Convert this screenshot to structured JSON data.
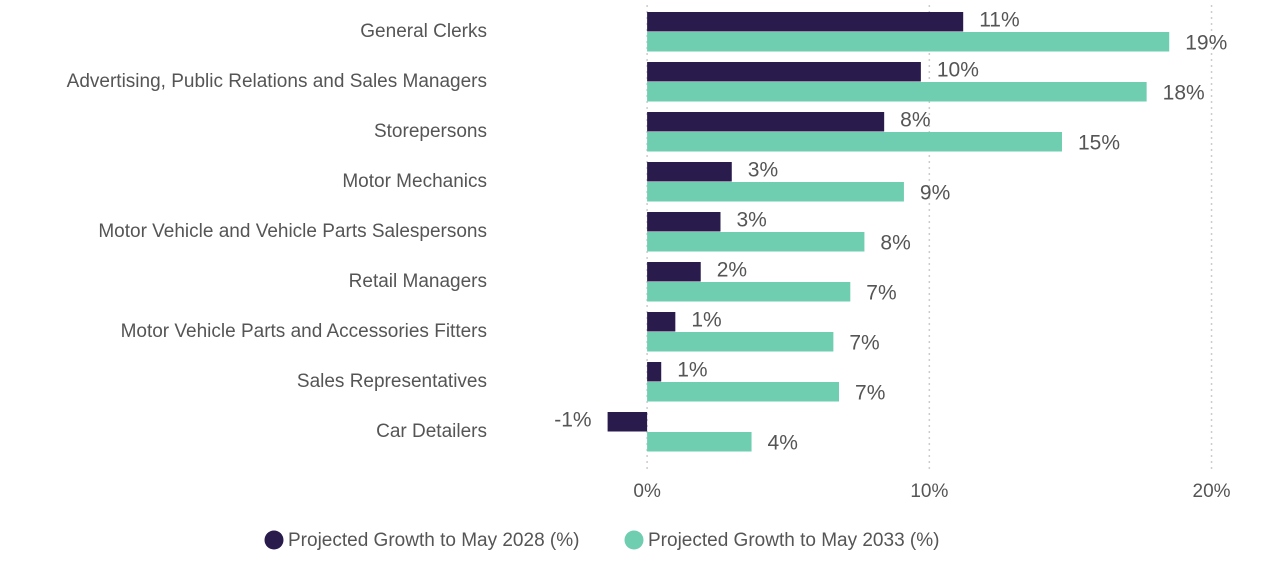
{
  "chart_data": {
    "type": "hbar",
    "categories": [
      "General Clerks",
      "Advertising, Public Relations and Sales Managers",
      "Storepersons",
      "Motor Mechanics",
      "Motor Vehicle and Vehicle Parts Salespersons",
      "Retail Managers",
      "Motor Vehicle Parts and Accessories Fitters",
      "Sales Representatives",
      "Car Detailers"
    ],
    "series": [
      {
        "name": "Projected Growth to May 2028 (%)",
        "color": "#2a1b4d",
        "values": [
          11.2,
          9.7,
          8.4,
          3.0,
          2.6,
          1.9,
          1.0,
          0.5,
          -1.4
        ],
        "value_labels": [
          "11%",
          "10%",
          "8%",
          "3%",
          "3%",
          "2%",
          "1%",
          "1%",
          "-1%"
        ]
      },
      {
        "name": "Projected Growth to May 2033 (%)",
        "color": "#6fcdb0",
        "values": [
          18.5,
          17.7,
          14.7,
          9.1,
          7.7,
          7.2,
          6.6,
          6.8,
          3.7
        ],
        "value_labels": [
          "19%",
          "18%",
          "15%",
          "9%",
          "8%",
          "7%",
          "7%",
          "7%",
          "4%"
        ]
      }
    ],
    "xlim": [
      -5,
      22
    ],
    "xticks": [
      {
        "value": 0,
        "label": "0%"
      },
      {
        "value": 10,
        "label": "10%"
      },
      {
        "value": 20,
        "label": "20%"
      }
    ],
    "grid": true,
    "legend": "bottom"
  }
}
